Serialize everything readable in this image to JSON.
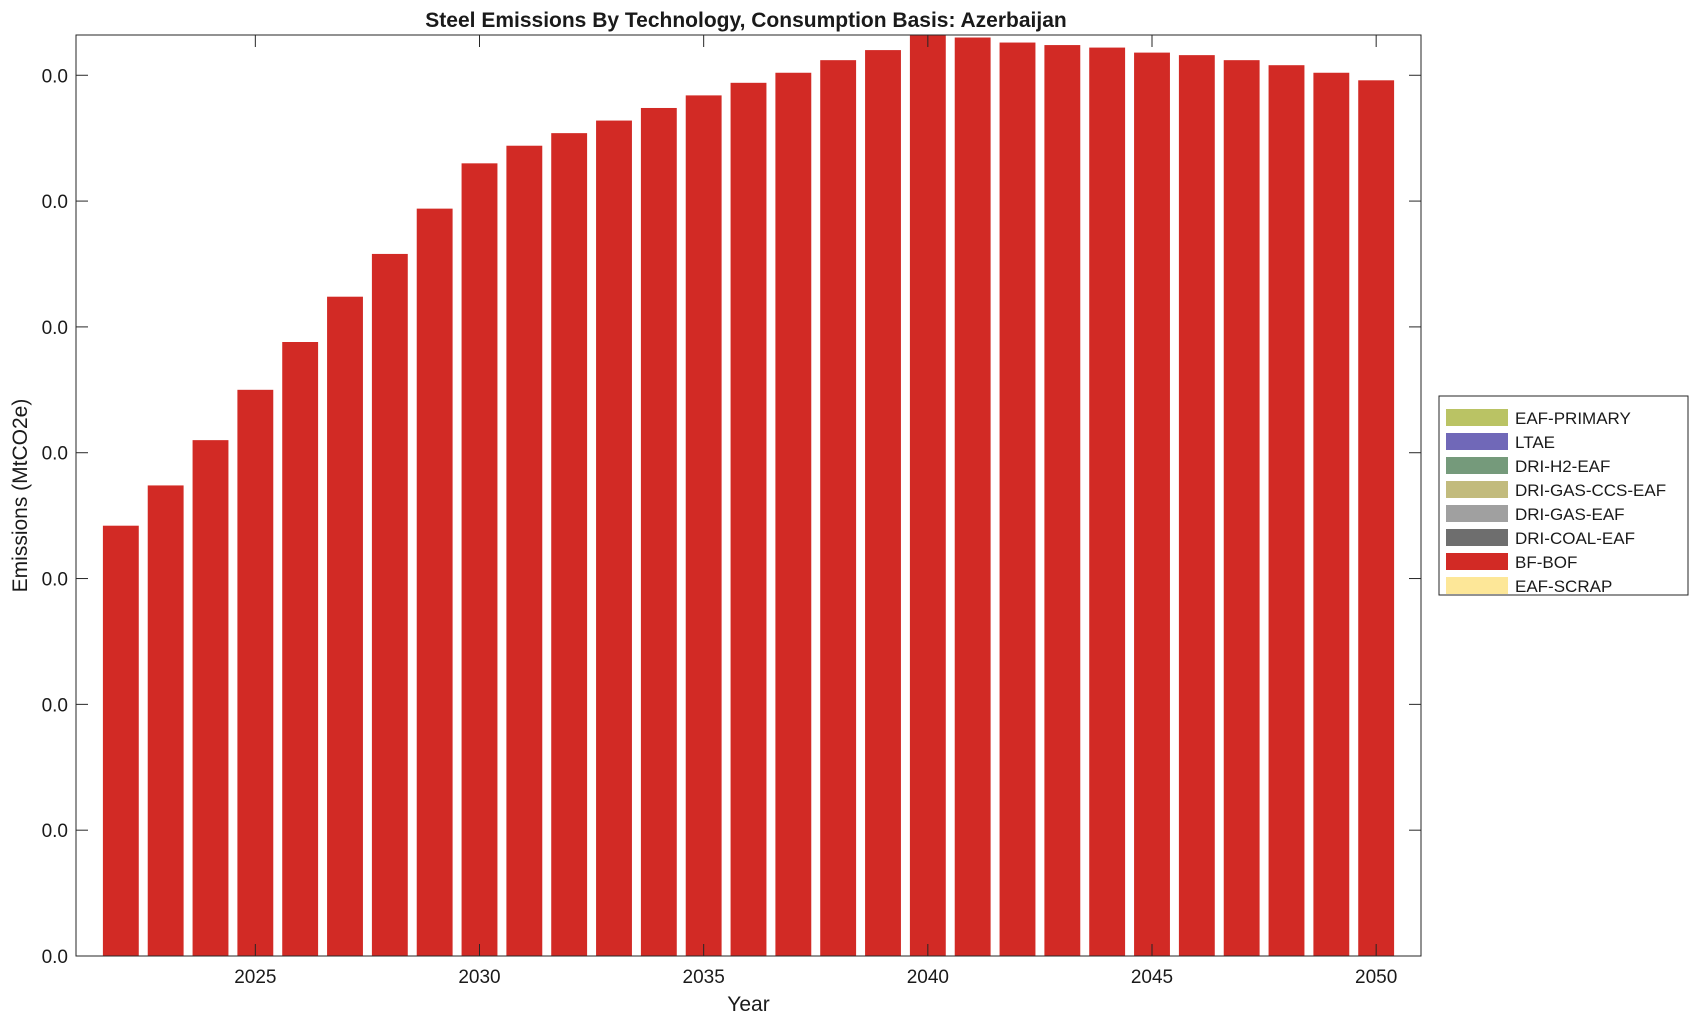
{
  "chart_data": {
    "type": "bar",
    "stacked": true,
    "title": "Steel Emissions By Technology, Consumption Basis: Azerbaijan",
    "xlabel": "Year",
    "ylabel": "Emissions (MtCO2e)",
    "x": [
      2022,
      2023,
      2024,
      2025,
      2026,
      2027,
      2028,
      2029,
      2030,
      2031,
      2032,
      2033,
      2034,
      2035,
      2036,
      2037,
      2038,
      2039,
      2040,
      2041,
      2042,
      2043,
      2044,
      2045,
      2046,
      2047,
      2048,
      2049,
      2050
    ],
    "xlim": [
      2021,
      2051
    ],
    "xticks": [
      2025,
      2030,
      2035,
      2040,
      2045,
      2050
    ],
    "xtick_labels": [
      "2025",
      "2030",
      "2035",
      "2040",
      "2045",
      "2050"
    ],
    "ylim": [
      0,
      0.0366
    ],
    "yticks": [
      0,
      0.005,
      0.01,
      0.015,
      0.02,
      0.025,
      0.03,
      0.035
    ],
    "ytick_labels": [
      "0.0",
      "0.0",
      "0.0",
      "0.0",
      "0.0",
      "0.0",
      "0.0",
      "0.0"
    ],
    "grid": false,
    "legend_position": "outside-right",
    "series": [
      {
        "name": "EAF-PRIMARY",
        "color": "#bac364",
        "values": [
          0,
          0,
          0,
          0,
          0,
          0,
          0,
          0,
          0,
          0,
          0,
          0,
          0,
          0,
          0,
          0,
          0,
          0,
          0,
          0,
          0,
          0,
          0,
          0,
          0,
          0,
          0,
          0,
          0
        ]
      },
      {
        "name": "LTAE",
        "color": "#7068b8",
        "values": [
          0,
          0,
          0,
          0,
          0,
          0,
          0,
          0,
          0,
          0,
          0,
          0,
          0,
          0,
          0,
          0,
          0,
          0,
          0,
          0,
          0,
          0,
          0,
          0,
          0,
          0,
          0,
          0,
          0
        ]
      },
      {
        "name": "DRI-H2-EAF",
        "color": "#759a7b",
        "values": [
          0,
          0,
          0,
          0,
          0,
          0,
          0,
          0,
          0,
          0,
          0,
          0,
          0,
          0,
          0,
          0,
          0,
          0,
          0,
          0,
          0,
          0,
          0,
          0,
          0,
          0,
          0,
          0,
          0
        ]
      },
      {
        "name": "DRI-GAS-CCS-EAF",
        "color": "#c2bb7d",
        "values": [
          0,
          0,
          0,
          0,
          0,
          0,
          0,
          0,
          0,
          0,
          0,
          0,
          0,
          0,
          0,
          0,
          0,
          0,
          0,
          0,
          0,
          0,
          0,
          0,
          0,
          0,
          0,
          0,
          0
        ]
      },
      {
        "name": "DRI-GAS-EAF",
        "color": "#a0a0a0",
        "values": [
          0,
          0,
          0,
          0,
          0,
          0,
          0,
          0,
          0,
          0,
          0,
          0,
          0,
          0,
          0,
          0,
          0,
          0,
          0,
          0,
          0,
          0,
          0,
          0,
          0,
          0,
          0,
          0,
          0
        ]
      },
      {
        "name": "DRI-COAL-EAF",
        "color": "#6e6e6e",
        "values": [
          0,
          0,
          0,
          0,
          0,
          0,
          0,
          0,
          0,
          0,
          0,
          0,
          0,
          0,
          0,
          0,
          0,
          0,
          0,
          0,
          0,
          0,
          0,
          0,
          0,
          0,
          0,
          0,
          0
        ]
      },
      {
        "name": "BF-BOF",
        "color": "#d22a25",
        "values": [
          0.0171,
          0.0187,
          0.0205,
          0.0225,
          0.0244,
          0.0262,
          0.0279,
          0.0297,
          0.0315,
          0.0322,
          0.0327,
          0.0332,
          0.0337,
          0.0342,
          0.0347,
          0.0351,
          0.0356,
          0.036,
          0.0366,
          0.0365,
          0.0363,
          0.0362,
          0.0361,
          0.0359,
          0.0358,
          0.0356,
          0.0354,
          0.0351,
          0.0348
        ]
      },
      {
        "name": "EAF-SCRAP",
        "color": "#fde798",
        "values": [
          0,
          0,
          0,
          0,
          0,
          0,
          0,
          0,
          0,
          0,
          0,
          0,
          0,
          0,
          0,
          0,
          0,
          0,
          0,
          0,
          0,
          0,
          0,
          0,
          0,
          0,
          0,
          0,
          0
        ]
      }
    ]
  }
}
